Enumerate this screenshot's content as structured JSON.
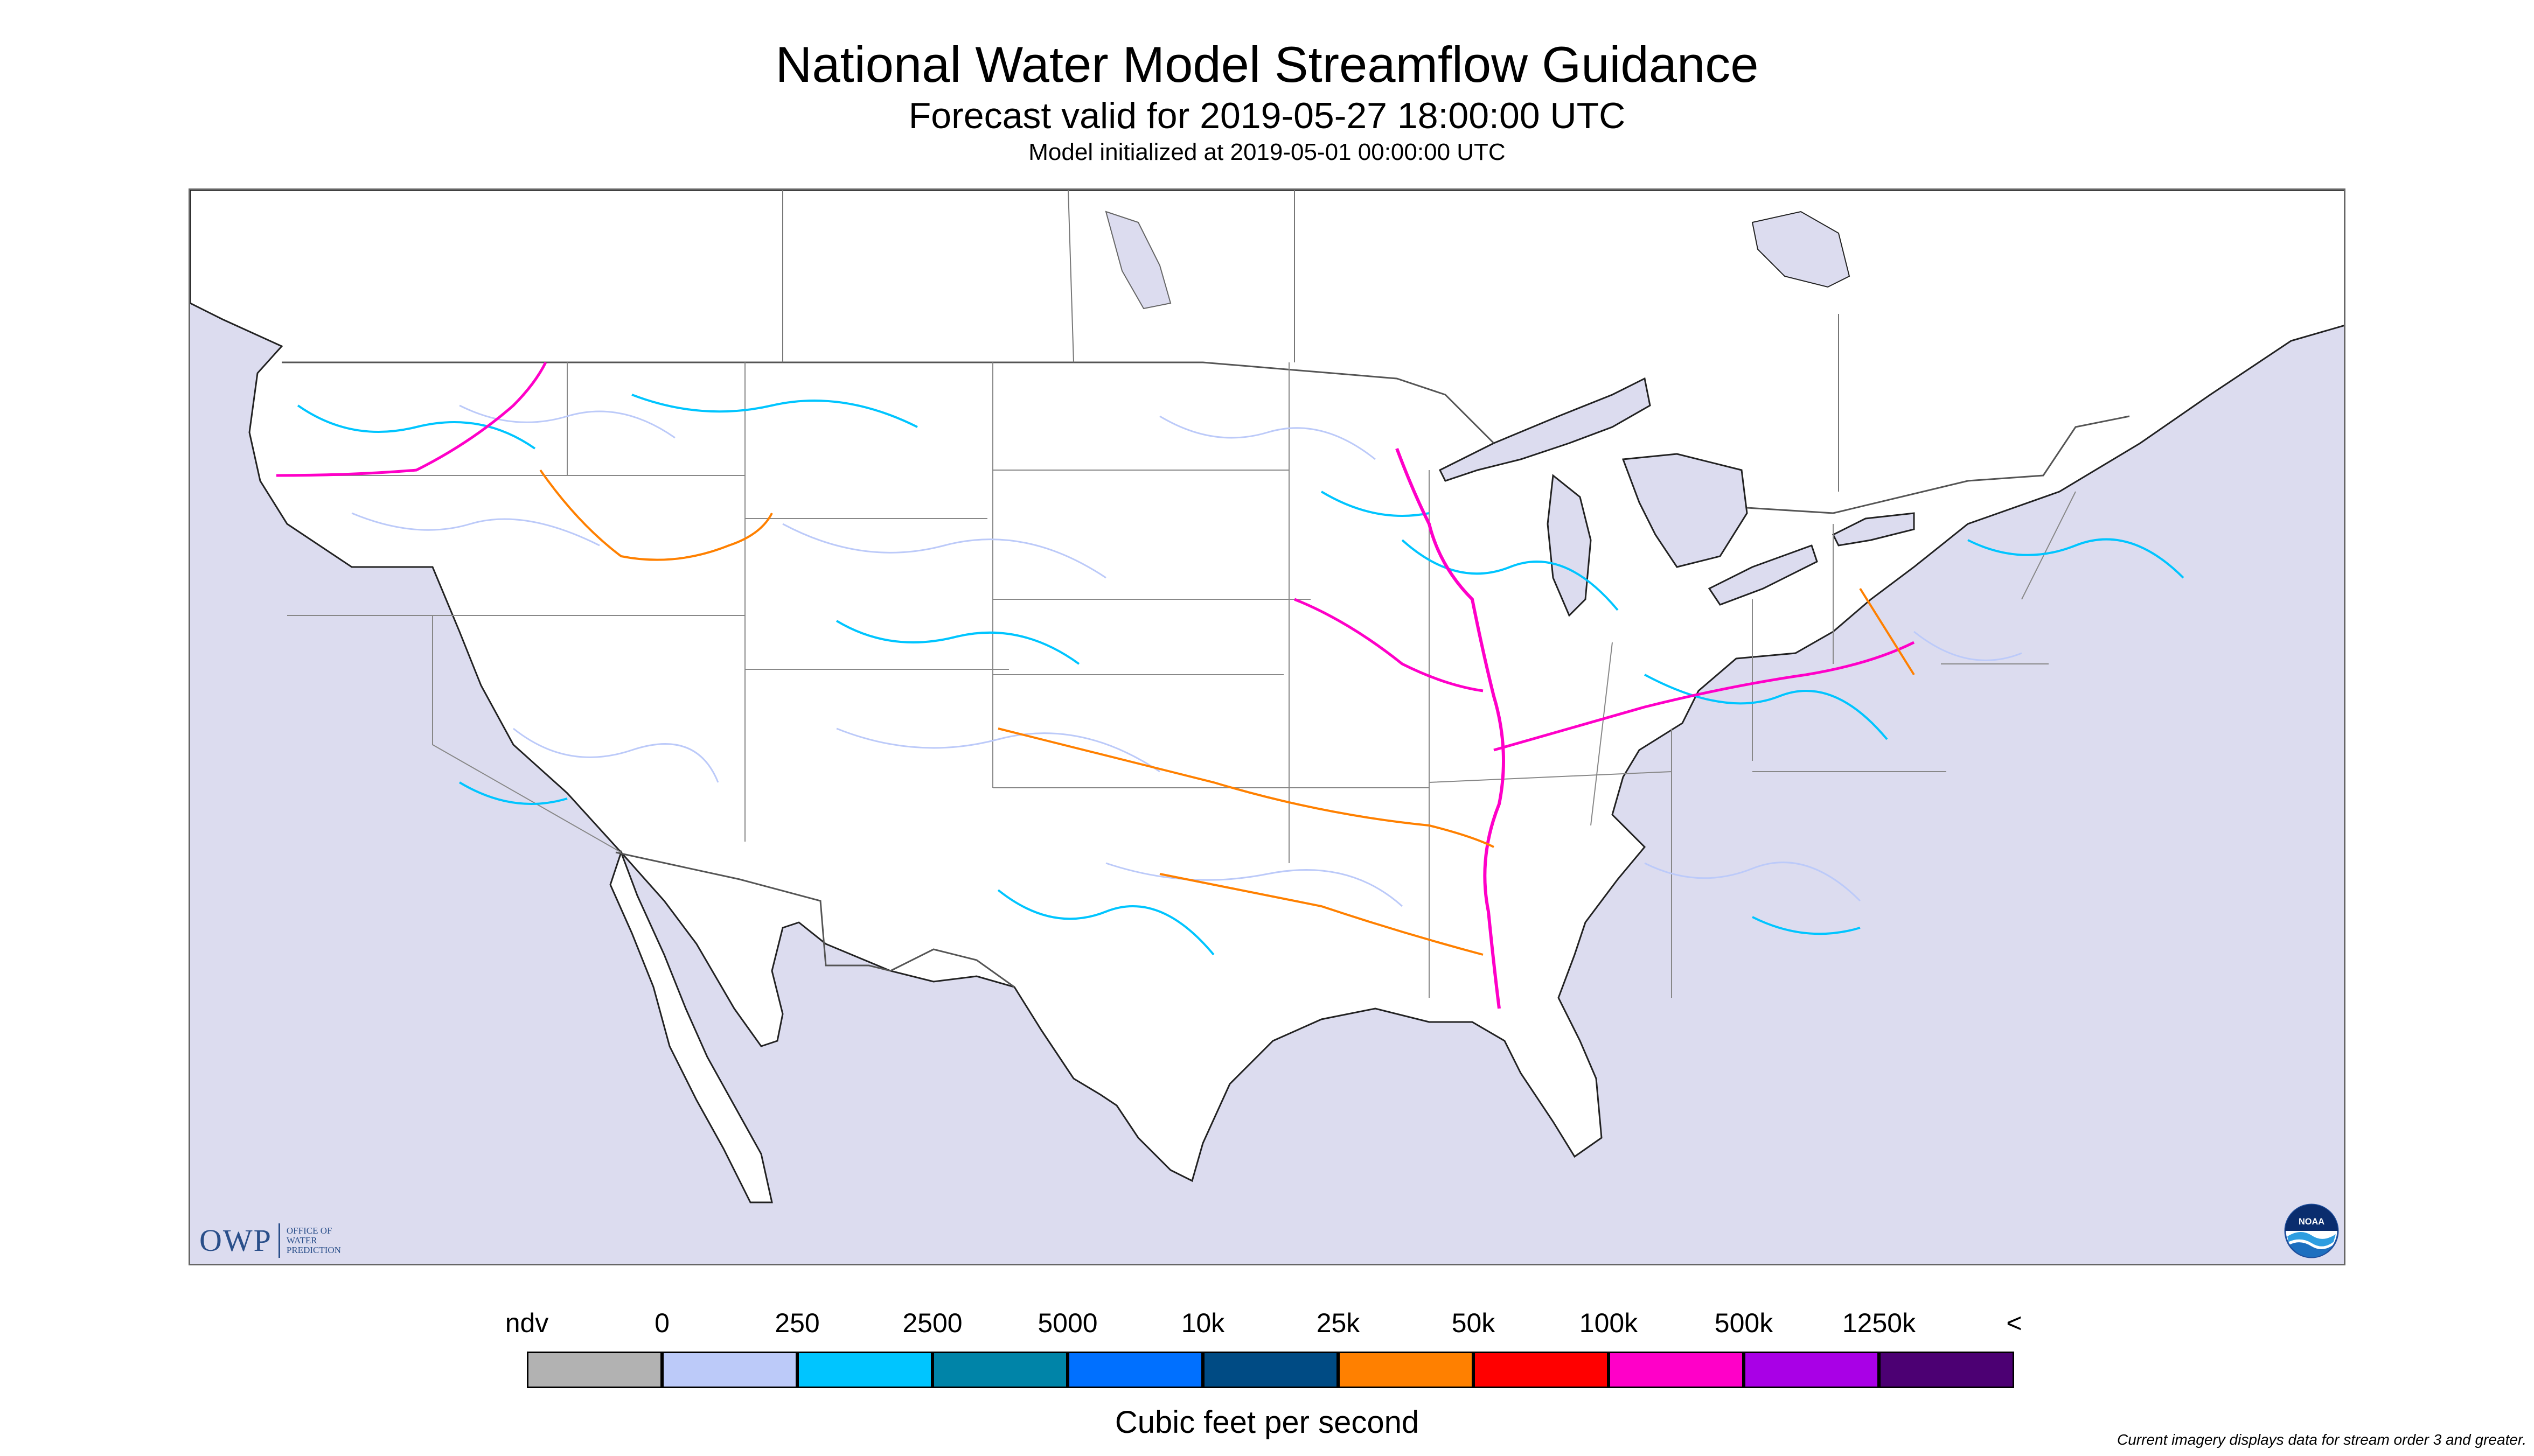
{
  "header": {
    "title": "National Water Model Streamflow Guidance",
    "subtitle": "Forecast valid for 2019-05-27 18:00:00 UTC",
    "init_line": "Model initialized at 2019-05-01 00:00:00 UTC"
  },
  "map": {
    "region": "Continental United States",
    "water_color": "#dcdcef",
    "land_color": "#ffffff",
    "border_color": "#555555",
    "river_colors": [
      "#bccaf9",
      "#00c5ff",
      "#ff00c8",
      "#ff8000"
    ]
  },
  "logos": {
    "owp_text": "OWP",
    "owp_lines": [
      "OFFICE OF",
      "WATER",
      "PREDICTION"
    ],
    "noaa_text": "NOAA"
  },
  "legend": {
    "labels": [
      "ndv",
      "0",
      "250",
      "2500",
      "5000",
      "10k",
      "25k",
      "50k",
      "100k",
      "500k",
      "1250k",
      "<"
    ],
    "colors": [
      "#b2b2b2",
      "#bccaf9",
      "#00c5ff",
      "#0084a8",
      "#0070ff",
      "#004b84",
      "#ff8000",
      "#ff0000",
      "#ff00c8",
      "#a900e6",
      "#4c0073"
    ],
    "units_label": "Cubic feet per second"
  },
  "footnote": "Current imagery displays data for stream order 3 and greater."
}
